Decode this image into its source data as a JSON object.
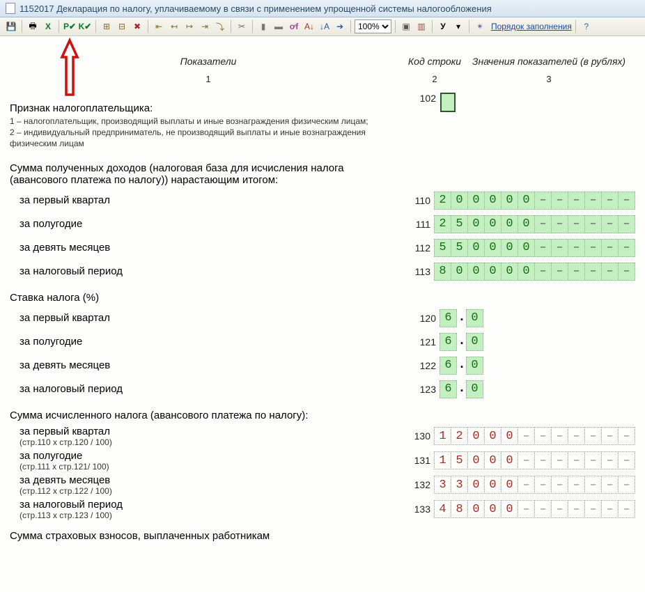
{
  "window": {
    "title": "1152017 Декларация по налогу, уплачиваемому в связи с применением упрощенной системы налогообложения"
  },
  "toolbar": {
    "zoom": "100%",
    "order_link": "Порядок заполнения"
  },
  "headers": {
    "indicators": "Показатели",
    "code": "Код строки",
    "values": "Значения показателей (в рублях)",
    "n1": "1",
    "n2": "2",
    "n3": "3"
  },
  "sec102": {
    "title": "Признак налогоплательщика:",
    "note1": "1 – налогоплательщик, производящий выплаты и иные вознаграждения физическим лицам;",
    "note2": "2 – индивидуальный предприниматель, не производящий выплаты и иные вознаграждения физическим лицам",
    "code": "102"
  },
  "income": {
    "title": "Сумма полученных доходов (налоговая база для исчисления налога (авансового платежа по налогу)) нарастающим итогом:",
    "rows": [
      {
        "label": "за первый квартал",
        "code": "110",
        "digits": [
          "2",
          "0",
          "0",
          "0",
          "0",
          "0"
        ]
      },
      {
        "label": "за полугодие",
        "code": "111",
        "digits": [
          "2",
          "5",
          "0",
          "0",
          "0",
          "0"
        ]
      },
      {
        "label": "за девять месяцев",
        "code": "112",
        "digits": [
          "5",
          "5",
          "0",
          "0",
          "0",
          "0"
        ]
      },
      {
        "label": "за налоговый период",
        "code": "113",
        "digits": [
          "8",
          "0",
          "0",
          "0",
          "0",
          "0"
        ]
      }
    ]
  },
  "rate": {
    "title": "Ставка налога (%)",
    "rows": [
      {
        "label": "за первый квартал",
        "code": "120",
        "int": "6",
        "frac": "0"
      },
      {
        "label": "за полугодие",
        "code": "121",
        "int": "6",
        "frac": "0"
      },
      {
        "label": "за девять месяцев",
        "code": "122",
        "int": "6",
        "frac": "0"
      },
      {
        "label": "за налоговый период",
        "code": "123",
        "int": "6",
        "frac": "0"
      }
    ]
  },
  "tax": {
    "title": "Сумма исчисленного налога (авансового платежа по налогу):",
    "rows": [
      {
        "label": "за первый квартал",
        "sub": "(стр.110 х стр.120 / 100)",
        "code": "130",
        "digits": [
          "1",
          "2",
          "0",
          "0",
          "0"
        ]
      },
      {
        "label": "за полугодие",
        "sub": "(стр.111 х стр.121/ 100)",
        "code": "131",
        "digits": [
          "1",
          "5",
          "0",
          "0",
          "0"
        ]
      },
      {
        "label": "за девять месяцев",
        "sub": "(стр.112 х стр.122 / 100)",
        "code": "132",
        "digits": [
          "3",
          "3",
          "0",
          "0",
          "0"
        ]
      },
      {
        "label": "за налоговый период",
        "sub": "(стр.113 х стр.123 / 100)",
        "code": "133",
        "digits": [
          "4",
          "8",
          "0",
          "0",
          "0"
        ]
      }
    ]
  },
  "footer": {
    "title": "Сумма страховых взносов, выплаченных работникам"
  },
  "style": {
    "cell_green_bg": "#c4efc0",
    "cell_green_fg": "#1a6a1a",
    "cell_red_fg": "#a03028",
    "total_value_cells": 12
  }
}
